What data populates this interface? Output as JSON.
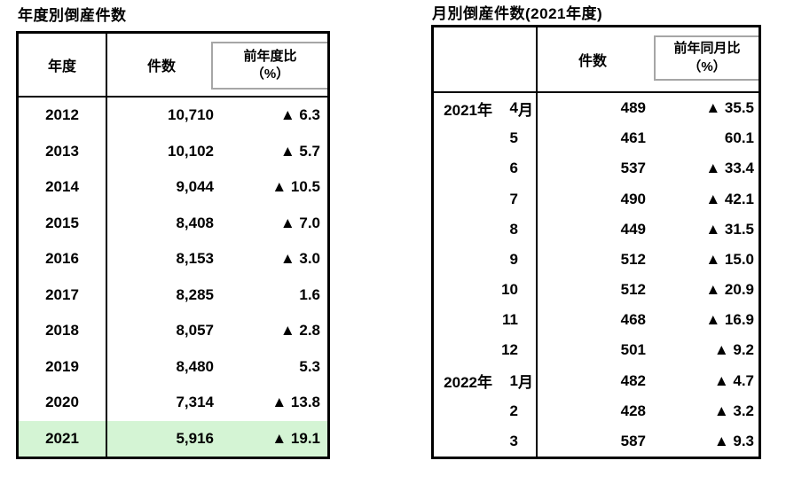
{
  "annual": {
    "title": "年度別倒産件数",
    "columns": {
      "year": "年度",
      "count": "件数",
      "yoy_line1": "前年度比",
      "yoy_line2": "（%）"
    },
    "rows": [
      {
        "year": "2012",
        "count": "10,710",
        "pct": "▲ 6.3",
        "highlight": false
      },
      {
        "year": "2013",
        "count": "10,102",
        "pct": "▲ 5.7",
        "highlight": false
      },
      {
        "year": "2014",
        "count": "9,044",
        "pct": "▲ 10.5",
        "highlight": false
      },
      {
        "year": "2015",
        "count": "8,408",
        "pct": "▲ 7.0",
        "highlight": false
      },
      {
        "year": "2016",
        "count": "8,153",
        "pct": "▲ 3.0",
        "highlight": false
      },
      {
        "year": "2017",
        "count": "8,285",
        "pct": "1.6",
        "highlight": false
      },
      {
        "year": "2018",
        "count": "8,057",
        "pct": "▲ 2.8",
        "highlight": false
      },
      {
        "year": "2019",
        "count": "8,480",
        "pct": "5.3",
        "highlight": false
      },
      {
        "year": "2020",
        "count": "7,314",
        "pct": "▲ 13.8",
        "highlight": false
      },
      {
        "year": "2021",
        "count": "5,916",
        "pct": "▲ 19.1",
        "highlight": true
      }
    ]
  },
  "monthly": {
    "title": "月別倒産件数(2021年度)",
    "columns": {
      "count": "件数",
      "yoy_line1": "前年同月比",
      "yoy_line2": "（%）"
    },
    "rows": [
      {
        "year": "2021年",
        "month": "4",
        "suffix": "月",
        "count": "489",
        "pct": "▲ 35.5"
      },
      {
        "year": "",
        "month": "5",
        "suffix": "",
        "count": "461",
        "pct": "60.1"
      },
      {
        "year": "",
        "month": "6",
        "suffix": "",
        "count": "537",
        "pct": "▲ 33.4"
      },
      {
        "year": "",
        "month": "7",
        "suffix": "",
        "count": "490",
        "pct": "▲ 42.1"
      },
      {
        "year": "",
        "month": "8",
        "suffix": "",
        "count": "449",
        "pct": "▲ 31.5"
      },
      {
        "year": "",
        "month": "9",
        "suffix": "",
        "count": "512",
        "pct": "▲ 15.0"
      },
      {
        "year": "",
        "month": "10",
        "suffix": "",
        "count": "512",
        "pct": "▲ 20.9"
      },
      {
        "year": "",
        "month": "11",
        "suffix": "",
        "count": "468",
        "pct": "▲ 16.9"
      },
      {
        "year": "",
        "month": "12",
        "suffix": "",
        "count": "501",
        "pct": "▲ 9.2"
      },
      {
        "year": "2022年",
        "month": "1",
        "suffix": "月",
        "count": "482",
        "pct": "▲ 4.7"
      },
      {
        "year": "",
        "month": "2",
        "suffix": "",
        "count": "428",
        "pct": "▲ 3.2"
      },
      {
        "year": "",
        "month": "3",
        "suffix": "",
        "count": "587",
        "pct": "▲ 9.3"
      }
    ]
  },
  "colors": {
    "highlight_row": "#d4f4d4",
    "inset_box_border": "#a6a6a6",
    "table_border": "#000000"
  }
}
